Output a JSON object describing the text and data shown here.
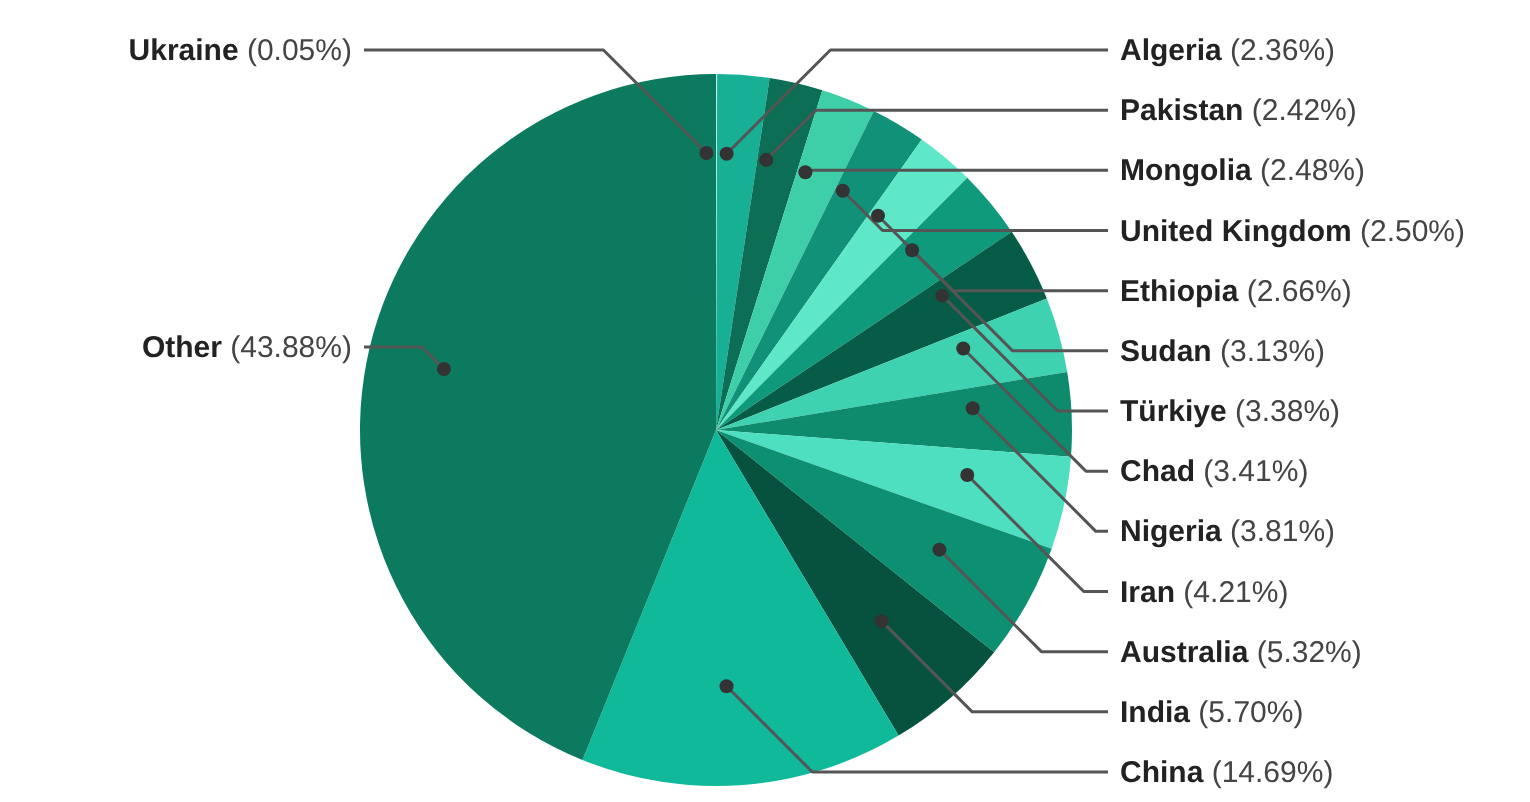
{
  "chart_data": {
    "type": "pie",
    "categories": [
      "Ukraine",
      "Algeria",
      "Pakistan",
      "Mongolia",
      "United Kingdom",
      "Ethiopia",
      "Sudan",
      "Türkiye",
      "Chad",
      "Nigeria",
      "Iran",
      "Australia",
      "India",
      "China",
      "Other"
    ],
    "values": [
      0.05,
      2.36,
      2.42,
      2.48,
      2.5,
      2.66,
      3.13,
      3.38,
      3.41,
      3.81,
      4.21,
      5.32,
      5.7,
      14.69,
      43.88
    ],
    "value_labels": [
      "(0.05%)",
      "(2.36%)",
      "(2.42%)",
      "(2.48%)",
      "(2.50%)",
      "(2.66%)",
      "(3.13%)",
      "(3.38%)",
      "(3.41%)",
      "(3.81%)",
      "(4.21%)",
      "(5.32%)",
      "(5.70%)",
      "(14.69%)",
      "(43.88%)"
    ],
    "colors": [
      "#c8f5e8",
      "#17b095",
      "#0b6e55",
      "#3fcfa8",
      "#119178",
      "#5ee8c8",
      "#0f9a7c",
      "#065c47",
      "#3fd2b0",
      "#0e8a6c",
      "#4ddfc0",
      "#0d8f72",
      "#06523f",
      "#10b99a",
      "#0b7a5e"
    ],
    "legend": false
  }
}
